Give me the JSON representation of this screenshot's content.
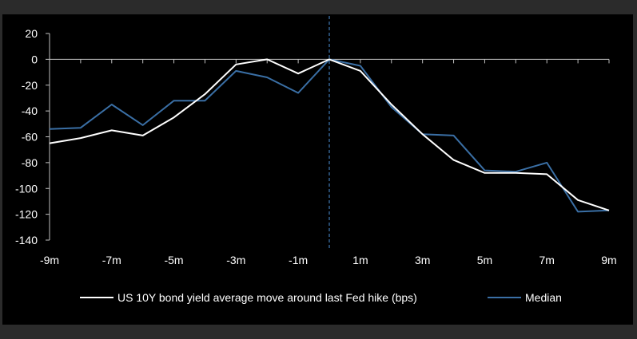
{
  "chart_data": {
    "type": "line",
    "title": "",
    "xlabel": "",
    "ylabel": "",
    "x": [
      -9,
      -8,
      -7,
      -6,
      -5,
      -4,
      -3,
      -2,
      -1,
      0,
      1,
      2,
      3,
      4,
      5,
      6,
      7,
      8,
      9
    ],
    "x_tick_labels": [
      "-9m",
      "-7m",
      "-5m",
      "-3m",
      "-1m",
      "1m",
      "3m",
      "5m",
      "7m",
      "9m"
    ],
    "x_tick_values": [
      -9,
      -7,
      -5,
      -3,
      -1,
      1,
      3,
      5,
      7,
      9
    ],
    "xlim": [
      -9,
      9
    ],
    "ylim": [
      -140,
      20
    ],
    "y_ticks": [
      20,
      0,
      -20,
      -40,
      -60,
      -80,
      -100,
      -120,
      -140
    ],
    "vertical_reference_line": 0,
    "grid": false,
    "legend_position": "bottom",
    "series": [
      {
        "name": "US 10Y bond yield average move around last Fed hike (bps)",
        "color": "#ffffff",
        "values": [
          -65,
          -61,
          -55,
          -59,
          -45,
          -27,
          -4,
          0,
          -11,
          0,
          -9,
          -35,
          -58,
          -78,
          -88,
          -88,
          -89,
          -109,
          -117
        ]
      },
      {
        "name": "Median",
        "color": "#3a6fa5",
        "values": [
          -54,
          -53,
          -35,
          -51,
          -32,
          -32,
          -9,
          -14,
          -26,
          0,
          -5,
          -37,
          -58,
          -59,
          -86,
          -87,
          -80,
          -118,
          -117
        ]
      }
    ]
  }
}
